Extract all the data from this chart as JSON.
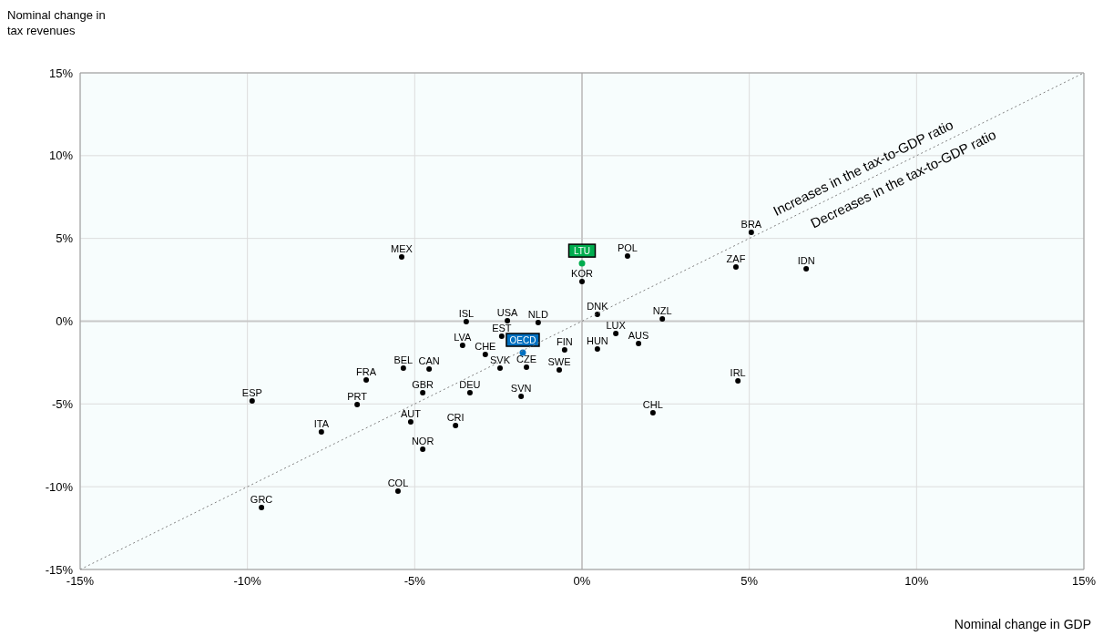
{
  "chart_data": {
    "type": "scatter",
    "xlabel": "Nominal change in GDP",
    "ylabel": "Nominal change in tax revenues",
    "xlim": [
      -15,
      15
    ],
    "ylim": [
      -15,
      15
    ],
    "xticks": [
      {
        "value": -15,
        "label": "-15%"
      },
      {
        "value": -10,
        "label": "-10%"
      },
      {
        "value": -5,
        "label": "-5%"
      },
      {
        "value": 0,
        "label": "0%"
      },
      {
        "value": 5,
        "label": "5%"
      },
      {
        "value": 10,
        "label": "10%"
      },
      {
        "value": 15,
        "label": "15%"
      }
    ],
    "yticks": [
      {
        "value": -15,
        "label": "-15%"
      },
      {
        "value": -10,
        "label": "-10%"
      },
      {
        "value": -5,
        "label": "-5%"
      },
      {
        "value": 0,
        "label": "0%"
      },
      {
        "value": 5,
        "label": "5%"
      },
      {
        "value": 10,
        "label": "10%"
      },
      {
        "value": 15,
        "label": "15%"
      }
    ],
    "grid": true,
    "legend": false,
    "annotations": [
      "Increases in the tax-to-GDP ratio",
      "Decreases in the tax-to-GDP ratio"
    ],
    "series": [
      {
        "color": "#000000",
        "x": [
          -5.39,
          1.36,
          0.0,
          5.06,
          4.6,
          6.7,
          0.46,
          2.4,
          -3.46,
          -2.23,
          -1.31,
          -2.4,
          -3.57,
          -2.89,
          -0.52,
          0.46,
          1.01,
          1.69,
          -0.68,
          -2.45,
          -1.66,
          -5.34,
          -4.57,
          -6.45,
          -4.76,
          -6.72,
          -3.35,
          -1.82,
          -9.86,
          -7.79,
          -5.12,
          -3.78,
          -4.76,
          -5.5,
          -9.58,
          4.66,
          2.12
        ],
        "values": [
          3.88,
          3.93,
          2.39,
          5.37,
          3.27,
          3.16,
          0.41,
          0.14,
          -0.03,
          0.03,
          -0.08,
          -0.91,
          -1.46,
          -2.01,
          -1.73,
          -1.68,
          -0.74,
          -1.35,
          -2.94,
          -2.83,
          -2.78,
          -2.83,
          -2.89,
          -3.55,
          -4.32,
          -5.04,
          -4.32,
          -4.54,
          -4.82,
          -6.69,
          -6.08,
          -6.3,
          -7.73,
          -10.27,
          -11.25,
          -3.6,
          -5.53
        ],
        "value_labels": [
          "MEX",
          "POL",
          "KOR",
          "BRA",
          "ZAF",
          "IDN",
          "DNK",
          "NZL",
          "ISL",
          "USA",
          "NLD",
          "EST",
          "LVA",
          "CHE",
          "FIN",
          "HUN",
          "LUX",
          "AUS",
          "SWE",
          "SVK",
          "CZE",
          "BEL",
          "CAN",
          "FRA",
          "GBR",
          "PRT",
          "DEU",
          "SVN",
          "ESP",
          "ITA",
          "AUT",
          "CRI",
          "NOR",
          "COL",
          "GRC",
          "IRL",
          "CHL"
        ]
      },
      {
        "color": "#00ad4f",
        "x": [
          0.0
        ],
        "values": [
          3.49
        ],
        "value_labels": [
          "LTU"
        ]
      },
      {
        "color": "#0070c0",
        "x": [
          -1.77
        ],
        "values": [
          -1.9
        ],
        "value_labels": [
          "OECD"
        ]
      },
      {
        "type": "line",
        "color": "#808080",
        "line_style": "dotted",
        "x": [
          -15,
          15
        ],
        "values": [
          -15,
          15
        ]
      }
    ]
  }
}
